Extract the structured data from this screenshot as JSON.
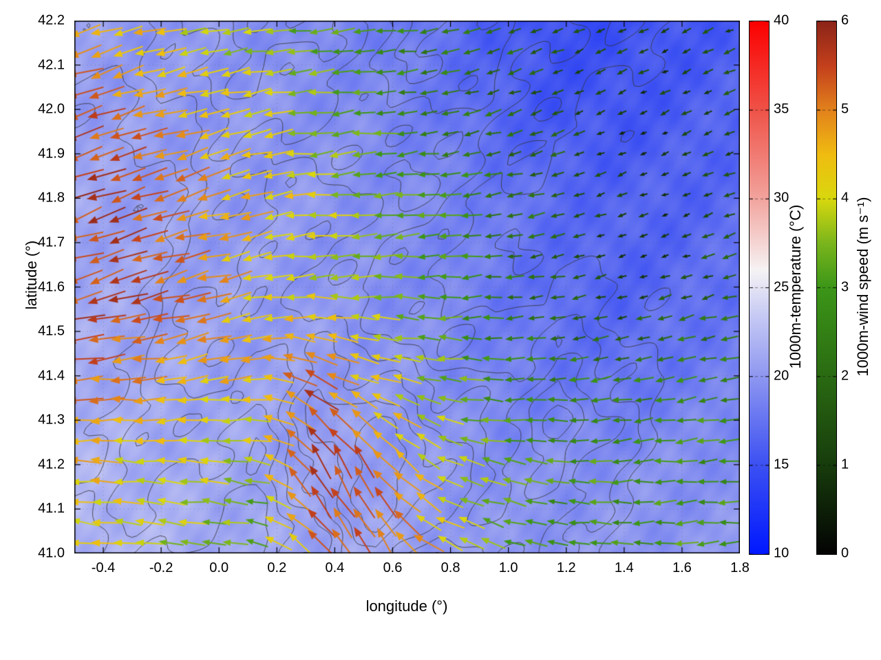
{
  "figure": {
    "background_color": "#ffffff",
    "axes": {
      "xlabel": "longitude (°)",
      "ylabel": "latitude (°)",
      "xlim": [
        -0.5,
        1.8
      ],
      "ylim": [
        41.0,
        42.2
      ],
      "xtick_values": [
        -0.4,
        -0.2,
        0.0,
        0.2,
        0.4,
        0.6,
        0.8,
        1.0,
        1.2,
        1.4,
        1.6,
        1.8
      ],
      "xtick_labels": [
        "-0.4",
        "-0.2",
        "0.0",
        "0.2",
        "0.4",
        "0.6",
        "0.8",
        "1.0",
        "1.2",
        "1.4",
        "1.6",
        "1.8"
      ],
      "ytick_values": [
        41.0,
        41.1,
        41.2,
        41.3,
        41.4,
        41.5,
        41.6,
        41.7,
        41.8,
        41.9,
        42.0,
        42.1,
        42.2
      ],
      "ytick_labels": [
        "41.0",
        "41.1",
        "41.2",
        "41.3",
        "41.4",
        "41.5",
        "41.6",
        "41.7",
        "41.8",
        "41.9",
        "42.0",
        "42.1",
        "42.2"
      ],
      "grid": "dotted"
    },
    "colorbars": [
      {
        "id": "temperature",
        "label": "1000m-temperature (°C)",
        "min": 10,
        "max": 40,
        "tick_values": [
          10,
          15,
          20,
          25,
          30,
          35,
          40
        ],
        "tick_labels": [
          "10",
          "15",
          "20",
          "25",
          "30",
          "35",
          "40"
        ],
        "stops": [
          {
            "t": 0.0,
            "c": "#0018ff"
          },
          {
            "t": 0.1667,
            "c": "#3c50f2"
          },
          {
            "t": 0.3333,
            "c": "#8e97f0"
          },
          {
            "t": 0.45,
            "c": "#c8cbf4"
          },
          {
            "t": 0.5333,
            "c": "#f6f3f4"
          },
          {
            "t": 0.6667,
            "c": "#f2a49e"
          },
          {
            "t": 0.8333,
            "c": "#ef5348"
          },
          {
            "t": 1.0,
            "c": "#fb0000"
          }
        ]
      },
      {
        "id": "wind_speed",
        "label": "1000m-wind speed (m s⁻¹)",
        "min": 0,
        "max": 6,
        "tick_values": [
          0,
          1,
          2,
          3,
          4,
          5,
          6
        ],
        "tick_labels": [
          "0",
          "1",
          "2",
          "3",
          "4",
          "5",
          "6"
        ],
        "stops": [
          {
            "t": 0.0,
            "c": "#030303"
          },
          {
            "t": 0.1667,
            "c": "#173c0c"
          },
          {
            "t": 0.3333,
            "c": "#2a6a12"
          },
          {
            "t": 0.5,
            "c": "#3c9618"
          },
          {
            "t": 0.5833,
            "c": "#7ab51c"
          },
          {
            "t": 0.6667,
            "c": "#d8d80e"
          },
          {
            "t": 0.75,
            "c": "#f0bc10"
          },
          {
            "t": 0.8333,
            "c": "#e2821c"
          },
          {
            "t": 0.9167,
            "c": "#c4401c"
          },
          {
            "t": 1.0,
            "c": "#8c2418"
          }
        ]
      }
    ]
  },
  "chart_data": {
    "type": "heatmap",
    "subtype": "wind-vector-field over temperature heatmap with terrain contour lines",
    "title": "",
    "xlabel": "longitude (°)",
    "ylabel": "latitude (°)",
    "x_range": [
      -0.5,
      1.8
    ],
    "y_range": [
      41.0,
      42.2
    ],
    "grid_note": "coarse uniform grids, rows ordered south (41.0) to north (42.2), columns west (-0.5) to east (1.8); values estimated from the rendered field",
    "temperature_c": [
      [
        22.0,
        22.0,
        21.5,
        21.0,
        21.0,
        21.0,
        20.5,
        20.0,
        20.0,
        20.0,
        20.0,
        20.0
      ],
      [
        22.0,
        21.5,
        21.0,
        21.0,
        20.5,
        20.5,
        20.0,
        19.5,
        19.5,
        19.5,
        19.5,
        19.5
      ],
      [
        21.5,
        21.0,
        21.0,
        20.5,
        20.5,
        20.0,
        19.5,
        18.5,
        18.0,
        17.5,
        18.0,
        18.5
      ],
      [
        21.0,
        21.0,
        20.5,
        20.5,
        20.0,
        19.5,
        19.0,
        18.0,
        17.0,
        16.5,
        17.0,
        17.5
      ],
      [
        21.0,
        20.5,
        20.5,
        20.0,
        20.0,
        19.5,
        19.0,
        18.0,
        17.0,
        16.5,
        16.5,
        17.0
      ],
      [
        20.5,
        20.5,
        20.0,
        20.0,
        19.5,
        19.0,
        18.0,
        16.5,
        15.5,
        15.5,
        16.0,
        16.5
      ],
      [
        20.5,
        20.0,
        20.0,
        19.5,
        19.0,
        18.5,
        17.5,
        16.0,
        15.0,
        15.0,
        15.5,
        16.0
      ]
    ],
    "wind_speed_ms": [
      [
        4.2,
        4.0,
        3.6,
        3.2,
        5.0,
        5.5,
        4.5,
        3.5,
        3.0,
        3.0,
        3.0,
        3.0
      ],
      [
        4.6,
        4.2,
        4.0,
        3.6,
        5.6,
        5.2,
        4.0,
        3.3,
        3.0,
        3.0,
        3.0,
        3.0
      ],
      [
        5.2,
        5.0,
        4.6,
        4.4,
        5.4,
        4.2,
        3.6,
        3.0,
        2.6,
        2.5,
        2.6,
        2.6
      ],
      [
        5.6,
        5.5,
        5.0,
        4.4,
        4.0,
        3.6,
        3.0,
        2.4,
        1.6,
        1.0,
        1.5,
        2.0
      ],
      [
        5.7,
        5.5,
        5.0,
        4.5,
        4.0,
        3.5,
        3.0,
        2.5,
        2.0,
        1.0,
        0.6,
        1.5
      ],
      [
        5.5,
        5.0,
        4.6,
        4.0,
        3.5,
        3.0,
        2.5,
        2.0,
        1.5,
        1.0,
        1.0,
        1.5
      ],
      [
        4.6,
        4.5,
        4.0,
        3.6,
        3.4,
        3.0,
        2.5,
        2.0,
        1.6,
        1.4,
        1.0,
        1.4
      ]
    ],
    "wind_direction_deg_ccw_from_east": [
      [
        172,
        172,
        175,
        168,
        135,
        120,
        150,
        162,
        172,
        178,
        182,
        182
      ],
      [
        176,
        176,
        175,
        170,
        115,
        130,
        150,
        168,
        176,
        182,
        186,
        186
      ],
      [
        186,
        186,
        190,
        186,
        155,
        165,
        172,
        180,
        186,
        190,
        190,
        190
      ],
      [
        196,
        196,
        195,
        190,
        184,
        180,
        180,
        186,
        190,
        196,
        196,
        196
      ],
      [
        200,
        200,
        196,
        190,
        186,
        184,
        186,
        190,
        196,
        200,
        200,
        200
      ],
      [
        200,
        198,
        195,
        190,
        186,
        186,
        190,
        196,
        200,
        204,
        204,
        200
      ],
      [
        196,
        195,
        190,
        186,
        184,
        184,
        190,
        196,
        200,
        204,
        204,
        200
      ]
    ],
    "terrain_m": [
      [
        320,
        420,
        360,
        320,
        520,
        720,
        430,
        600,
        520,
        320,
        210,
        120
      ],
      [
        360,
        510,
        420,
        370,
        620,
        920,
        720,
        520,
        620,
        420,
        260,
        160
      ],
      [
        310,
        460,
        520,
        420,
        720,
        820,
        620,
        520,
        720,
        520,
        310,
        210
      ],
      [
        260,
        410,
        620,
        520,
        620,
        520,
        420,
        420,
        520,
        420,
        310,
        260
      ],
      [
        210,
        360,
        520,
        620,
        520,
        420,
        360,
        310,
        420,
        360,
        310,
        310
      ],
      [
        260,
        310,
        420,
        520,
        620,
        520,
        420,
        360,
        310,
        260,
        260,
        360
      ],
      [
        310,
        360,
        460,
        560,
        520,
        460,
        520,
        420,
        360,
        310,
        260,
        310
      ],
      [
        360,
        410,
        520,
        620,
        560,
        520,
        620,
        520,
        420,
        360,
        310,
        260
      ],
      [
        410,
        460,
        560,
        660,
        620,
        560,
        660,
        560,
        460,
        410,
        360,
        310
      ]
    ],
    "contour_levels_m": [
      380,
      460,
      540,
      620,
      700,
      800
    ],
    "vector_grid": {
      "cols": 31,
      "rows": 26
    }
  }
}
